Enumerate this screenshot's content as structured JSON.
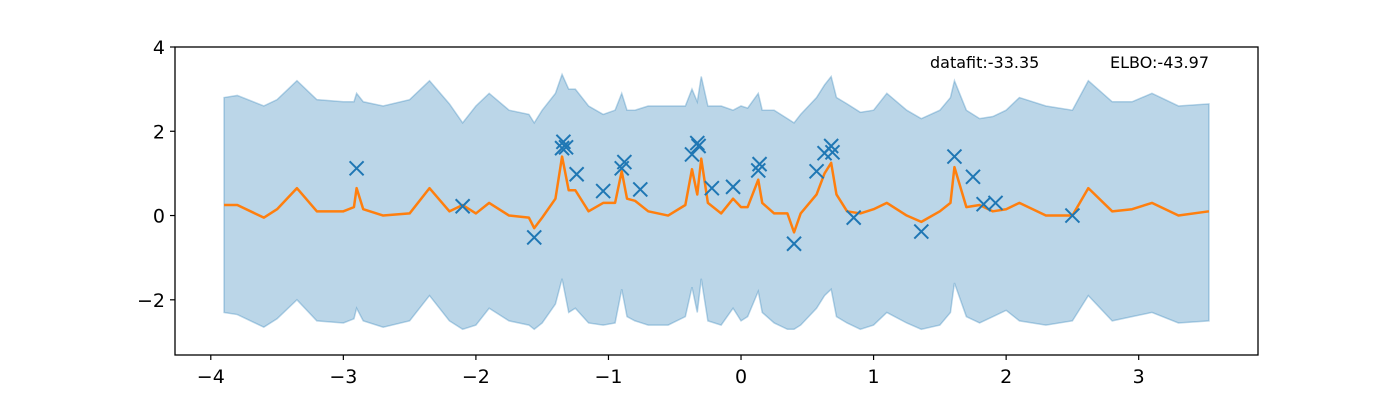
{
  "chart_data": {
    "type": "line",
    "annotations": [
      "datafit:-33.35",
      "ELBO:-43.97"
    ],
    "xlim": [
      -4.27,
      3.9
    ],
    "ylim": [
      -3.31,
      4
    ],
    "xticks": [
      {
        "value": -4,
        "label": "−4"
      },
      {
        "value": -3,
        "label": "−3"
      },
      {
        "value": -2,
        "label": "−2"
      },
      {
        "value": -1,
        "label": "−1"
      },
      0,
      1,
      2,
      3
    ],
    "yticks": [
      {
        "value": -2,
        "label": "−2"
      },
      0,
      2,
      4
    ],
    "x": [
      -3.9,
      -3.8,
      -3.6,
      -3.5,
      -3.35,
      -3.2,
      -3.0,
      -2.92,
      -2.9,
      -2.85,
      -2.7,
      -2.5,
      -2.35,
      -2.2,
      -2.1,
      -2.0,
      -1.9,
      -1.75,
      -1.6,
      -1.56,
      -1.5,
      -1.4,
      -1.35,
      -1.3,
      -1.25,
      -1.15,
      -1.04,
      -0.95,
      -0.9,
      -0.86,
      -0.8,
      -0.7,
      -0.55,
      -0.42,
      -0.37,
      -0.33,
      -0.3,
      -0.25,
      -0.15,
      -0.06,
      0.0,
      0.05,
      0.13,
      0.16,
      0.25,
      0.35,
      0.4,
      0.45,
      0.57,
      0.63,
      0.68,
      0.72,
      0.8,
      0.9,
      1.0,
      1.1,
      1.25,
      1.36,
      1.5,
      1.58,
      1.61,
      1.7,
      1.8,
      1.9,
      2.0,
      2.1,
      2.3,
      2.5,
      2.62,
      2.8,
      2.95,
      3.1,
      3.3,
      3.53
    ],
    "band": {
      "color": "#1f77b4",
      "upper": [
        2.8,
        2.85,
        2.6,
        2.75,
        3.2,
        2.75,
        2.7,
        2.7,
        2.9,
        2.7,
        2.6,
        2.75,
        3.2,
        2.65,
        2.2,
        2.6,
        2.9,
        2.5,
        2.4,
        2.2,
        2.5,
        2.9,
        3.35,
        3.0,
        3.0,
        2.6,
        2.4,
        2.5,
        2.9,
        2.5,
        2.5,
        2.6,
        2.6,
        2.6,
        3.0,
        2.7,
        3.3,
        2.6,
        2.6,
        2.5,
        2.6,
        2.55,
        2.9,
        2.5,
        2.5,
        2.3,
        2.2,
        2.4,
        2.8,
        3.1,
        3.3,
        2.8,
        2.65,
        2.45,
        2.5,
        2.9,
        2.5,
        2.3,
        2.5,
        2.8,
        3.2,
        2.5,
        2.3,
        2.35,
        2.5,
        2.8,
        2.6,
        2.5,
        3.2,
        2.7,
        2.7,
        2.9,
        2.6,
        2.65
      ],
      "lower": [
        -2.3,
        -2.35,
        -2.65,
        -2.45,
        -2.0,
        -2.5,
        -2.55,
        -2.45,
        -2.2,
        -2.5,
        -2.65,
        -2.5,
        -1.9,
        -2.5,
        -2.7,
        -2.6,
        -2.2,
        -2.5,
        -2.6,
        -2.7,
        -2.55,
        -2.1,
        -1.5,
        -2.3,
        -2.2,
        -2.55,
        -2.6,
        -2.55,
        -1.75,
        -2.4,
        -2.5,
        -2.6,
        -2.6,
        -2.4,
        -1.7,
        -2.3,
        -1.5,
        -2.5,
        -2.6,
        -2.2,
        -2.5,
        -2.4,
        -1.8,
        -2.3,
        -2.55,
        -2.7,
        -2.7,
        -2.6,
        -2.2,
        -1.9,
        -1.75,
        -2.4,
        -2.55,
        -2.7,
        -2.6,
        -2.3,
        -2.55,
        -2.7,
        -2.6,
        -2.3,
        -1.6,
        -2.4,
        -2.55,
        -2.4,
        -2.25,
        -2.5,
        -2.6,
        -2.5,
        -1.9,
        -2.5,
        -2.4,
        -2.3,
        -2.55,
        -2.5
      ]
    },
    "line": {
      "color": "#ff7f0e",
      "values": [
        0.25,
        0.25,
        -0.05,
        0.15,
        0.65,
        0.1,
        0.1,
        0.2,
        0.65,
        0.15,
        0.0,
        0.05,
        0.65,
        0.1,
        0.25,
        0.05,
        0.3,
        0.0,
        -0.05,
        -0.3,
        -0.05,
        0.4,
        1.4,
        0.6,
        0.6,
        0.1,
        0.3,
        0.3,
        1.05,
        0.4,
        0.35,
        0.1,
        0.0,
        0.25,
        1.1,
        0.5,
        1.35,
        0.3,
        0.05,
        0.4,
        0.2,
        0.2,
        0.85,
        0.3,
        0.05,
        0.05,
        -0.4,
        0.05,
        0.5,
        1.0,
        1.25,
        0.5,
        0.1,
        0.05,
        0.15,
        0.3,
        0.0,
        -0.15,
        0.1,
        0.3,
        1.15,
        0.2,
        0.25,
        0.1,
        0.15,
        0.3,
        0.0,
        0.0,
        0.65,
        0.1,
        0.15,
        0.3,
        0.0,
        0.1
      ]
    },
    "points": {
      "color": "#1f77b4",
      "x": [
        -2.9,
        -2.1,
        -1.56,
        -1.35,
        -1.34,
        -1.32,
        -1.24,
        -1.04,
        -0.9,
        -0.88,
        -0.76,
        -0.37,
        -0.33,
        -0.32,
        -0.22,
        -0.06,
        0.13,
        0.14,
        0.4,
        0.57,
        0.63,
        0.68,
        0.69,
        0.85,
        1.36,
        1.61,
        1.75,
        1.83,
        1.92,
        2.5
      ],
      "y": [
        1.12,
        0.22,
        -0.52,
        1.6,
        1.75,
        1.62,
        0.98,
        0.58,
        1.12,
        1.27,
        0.62,
        1.45,
        1.72,
        1.65,
        0.65,
        0.68,
        1.07,
        1.22,
        -0.67,
        1.05,
        1.48,
        1.65,
        1.5,
        -0.05,
        -0.38,
        1.4,
        0.92,
        0.27,
        0.3,
        0.0
      ]
    }
  }
}
